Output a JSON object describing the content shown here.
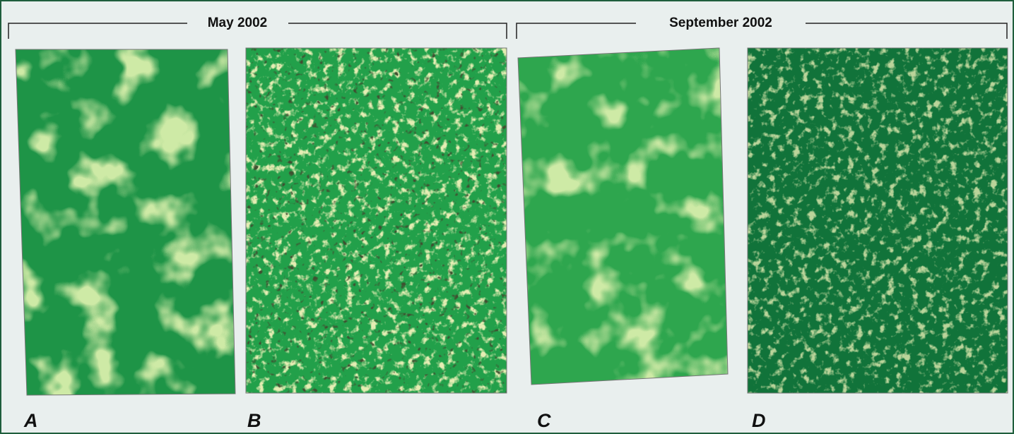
{
  "header": {
    "left": "May 2002",
    "right": "September 2002"
  },
  "panels": [
    {
      "label": "A"
    },
    {
      "label": "B"
    },
    {
      "label": "C"
    },
    {
      "label": "D"
    }
  ]
}
